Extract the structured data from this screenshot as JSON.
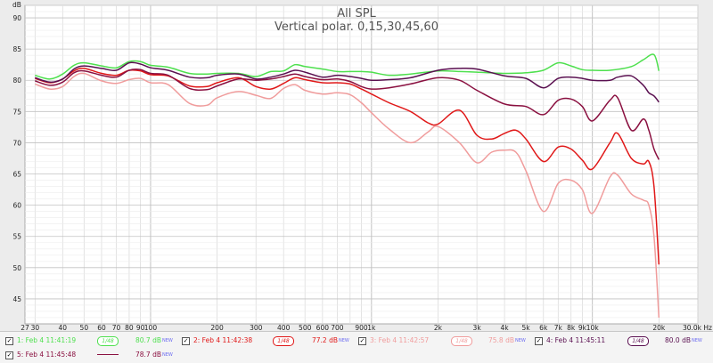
{
  "chart_data": {
    "type": "line",
    "title": "All SPL",
    "subtitle": "Vertical polar. 0,15,30,45,60",
    "ylabel": "dB",
    "xlabel": "Hz",
    "x_scale": "log",
    "xlim": [
      27,
      30000
    ],
    "ylim": [
      41,
      92
    ],
    "yticks": [
      45,
      50,
      55,
      60,
      65,
      70,
      75,
      80,
      85,
      90
    ],
    "xticks": [
      {
        "v": 27,
        "label": "27"
      },
      {
        "v": 30,
        "label": "30"
      },
      {
        "v": 40,
        "label": "40"
      },
      {
        "v": 50,
        "label": "50"
      },
      {
        "v": 60,
        "label": "60"
      },
      {
        "v": 70,
        "label": "70"
      },
      {
        "v": 80,
        "label": "80"
      },
      {
        "v": 90,
        "label": "90"
      },
      {
        "v": 100,
        "label": "100"
      },
      {
        "v": 200,
        "label": "200"
      },
      {
        "v": 300,
        "label": "300"
      },
      {
        "v": 400,
        "label": "400"
      },
      {
        "v": 500,
        "label": "500"
      },
      {
        "v": 600,
        "label": "600"
      },
      {
        "v": 700,
        "label": "700"
      },
      {
        "v": 900,
        "label": "900"
      },
      {
        "v": 1000,
        "label": "1k"
      },
      {
        "v": 2000,
        "label": "2k"
      },
      {
        "v": 3000,
        "label": "3k"
      },
      {
        "v": 4000,
        "label": "4k"
      },
      {
        "v": 5000,
        "label": "5k"
      },
      {
        "v": 6000,
        "label": "6k"
      },
      {
        "v": 7000,
        "label": "7k"
      },
      {
        "v": 8000,
        "label": "8k"
      },
      {
        "v": 9000,
        "label": "9k"
      },
      {
        "v": 10000,
        "label": "10k"
      },
      {
        "v": 20000,
        "label": "20k"
      },
      {
        "v": 30000,
        "label": "30.0k Hz"
      }
    ],
    "grid": true,
    "legend_position": "bottom",
    "series": [
      {
        "name": "1: Feb 4 11:41:19",
        "color": "#4ee04e",
        "level": "80.7 dB",
        "smoothing": "1/48",
        "points": [
          [
            30,
            80.8
          ],
          [
            35,
            80.2
          ],
          [
            40,
            81.0
          ],
          [
            45,
            82.4
          ],
          [
            50,
            82.8
          ],
          [
            60,
            82.3
          ],
          [
            70,
            82.0
          ],
          [
            80,
            83.0
          ],
          [
            90,
            83.0
          ],
          [
            100,
            82.4
          ],
          [
            120,
            82.1
          ],
          [
            150,
            81.1
          ],
          [
            180,
            81.0
          ],
          [
            200,
            81.1
          ],
          [
            250,
            81.1
          ],
          [
            300,
            80.6
          ],
          [
            350,
            81.4
          ],
          [
            400,
            81.5
          ],
          [
            450,
            82.5
          ],
          [
            500,
            82.2
          ],
          [
            600,
            81.8
          ],
          [
            700,
            81.4
          ],
          [
            800,
            81.4
          ],
          [
            900,
            81.4
          ],
          [
            1000,
            81.3
          ],
          [
            1200,
            80.8
          ],
          [
            1500,
            81.0
          ],
          [
            2000,
            81.5
          ],
          [
            2500,
            81.4
          ],
          [
            3000,
            81.3
          ],
          [
            4000,
            81.1
          ],
          [
            5000,
            81.2
          ],
          [
            6000,
            81.6
          ],
          [
            7000,
            82.8
          ],
          [
            8000,
            82.3
          ],
          [
            9000,
            81.7
          ],
          [
            10000,
            81.6
          ],
          [
            12000,
            81.6
          ],
          [
            15000,
            82.2
          ],
          [
            17000,
            83.3
          ],
          [
            19000,
            84.1
          ],
          [
            20000,
            81.5
          ]
        ]
      },
      {
        "name": "2: Feb 4 11:42:38",
        "color": "#e01818",
        "level": "77.2 dB",
        "smoothing": "1/48",
        "points": [
          [
            30,
            80.3
          ],
          [
            35,
            79.6
          ],
          [
            40,
            80.2
          ],
          [
            45,
            81.5
          ],
          [
            50,
            81.9
          ],
          [
            60,
            81.1
          ],
          [
            70,
            80.8
          ],
          [
            80,
            81.6
          ],
          [
            90,
            81.5
          ],
          [
            100,
            80.9
          ],
          [
            120,
            80.7
          ],
          [
            150,
            79.1
          ],
          [
            180,
            79.0
          ],
          [
            200,
            79.6
          ],
          [
            250,
            80.4
          ],
          [
            300,
            79.0
          ],
          [
            350,
            78.6
          ],
          [
            400,
            79.5
          ],
          [
            450,
            80.4
          ],
          [
            500,
            80.1
          ],
          [
            600,
            79.6
          ],
          [
            700,
            79.6
          ],
          [
            800,
            79.4
          ],
          [
            900,
            78.6
          ],
          [
            1000,
            77.8
          ],
          [
            1200,
            76.4
          ],
          [
            1500,
            75.0
          ],
          [
            1800,
            73.2
          ],
          [
            2000,
            73.0
          ],
          [
            2500,
            75.2
          ],
          [
            3000,
            71.2
          ],
          [
            3500,
            70.6
          ],
          [
            4000,
            71.5
          ],
          [
            4500,
            72.0
          ],
          [
            5000,
            70.6
          ],
          [
            6000,
            67.0
          ],
          [
            7000,
            69.3
          ],
          [
            8000,
            69.0
          ],
          [
            9000,
            67.2
          ],
          [
            10000,
            65.8
          ],
          [
            12000,
            70.0
          ],
          [
            13000,
            71.5
          ],
          [
            15000,
            67.5
          ],
          [
            17000,
            66.6
          ],
          [
            18000,
            67.0
          ],
          [
            19000,
            63.0
          ],
          [
            20000,
            50.5
          ]
        ]
      },
      {
        "name": "3: Feb 4 11:42:57",
        "color": "#f09c9c",
        "level": "75.8 dB",
        "smoothing": "1/48",
        "points": [
          [
            30,
            79.4
          ],
          [
            35,
            78.6
          ],
          [
            40,
            79.0
          ],
          [
            45,
            80.6
          ],
          [
            50,
            81.1
          ],
          [
            60,
            79.9
          ],
          [
            70,
            79.5
          ],
          [
            80,
            80.1
          ],
          [
            90,
            80.3
          ],
          [
            100,
            79.6
          ],
          [
            120,
            79.3
          ],
          [
            150,
            76.3
          ],
          [
            180,
            76.0
          ],
          [
            200,
            77.2
          ],
          [
            250,
            78.2
          ],
          [
            300,
            77.6
          ],
          [
            350,
            77.1
          ],
          [
            400,
            78.7
          ],
          [
            450,
            79.3
          ],
          [
            500,
            78.4
          ],
          [
            600,
            77.8
          ],
          [
            700,
            78.0
          ],
          [
            800,
            77.7
          ],
          [
            900,
            76.4
          ],
          [
            1000,
            74.8
          ],
          [
            1200,
            72.2
          ],
          [
            1500,
            70.0
          ],
          [
            1800,
            71.7
          ],
          [
            2000,
            72.6
          ],
          [
            2500,
            70.0
          ],
          [
            3000,
            66.8
          ],
          [
            3500,
            68.5
          ],
          [
            4000,
            68.8
          ],
          [
            4500,
            68.5
          ],
          [
            5000,
            65.5
          ],
          [
            6000,
            59.0
          ],
          [
            7000,
            63.5
          ],
          [
            8000,
            64.0
          ],
          [
            9000,
            62.5
          ],
          [
            10000,
            58.7
          ],
          [
            12000,
            64.5
          ],
          [
            13000,
            64.8
          ],
          [
            15000,
            61.8
          ],
          [
            17000,
            60.8
          ],
          [
            18000,
            60.0
          ],
          [
            19000,
            55.0
          ],
          [
            20000,
            42.0
          ]
        ]
      },
      {
        "name": "4: Feb 4 11:45:11",
        "color": "#5a1050",
        "level": "80.0 dB",
        "smoothing": "1/48",
        "points": [
          [
            30,
            80.4
          ],
          [
            35,
            79.7
          ],
          [
            40,
            80.2
          ],
          [
            45,
            81.8
          ],
          [
            50,
            82.3
          ],
          [
            60,
            81.9
          ],
          [
            70,
            81.6
          ],
          [
            80,
            82.8
          ],
          [
            90,
            82.6
          ],
          [
            100,
            82.0
          ],
          [
            120,
            81.6
          ],
          [
            150,
            80.5
          ],
          [
            180,
            80.4
          ],
          [
            200,
            80.8
          ],
          [
            250,
            81.0
          ],
          [
            300,
            80.2
          ],
          [
            350,
            80.5
          ],
          [
            400,
            81.0
          ],
          [
            450,
            81.6
          ],
          [
            500,
            81.3
          ],
          [
            600,
            80.5
          ],
          [
            700,
            80.8
          ],
          [
            800,
            80.6
          ],
          [
            900,
            80.3
          ],
          [
            1000,
            80.0
          ],
          [
            1200,
            80.1
          ],
          [
            1500,
            80.4
          ],
          [
            2000,
            81.6
          ],
          [
            2500,
            81.9
          ],
          [
            3000,
            81.8
          ],
          [
            4000,
            80.7
          ],
          [
            5000,
            80.3
          ],
          [
            6000,
            78.8
          ],
          [
            7000,
            80.3
          ],
          [
            8000,
            80.5
          ],
          [
            9000,
            80.3
          ],
          [
            10000,
            80.0
          ],
          [
            12000,
            80.0
          ],
          [
            13000,
            80.5
          ],
          [
            15000,
            80.7
          ],
          [
            17000,
            79.2
          ],
          [
            18000,
            78.0
          ],
          [
            19000,
            77.5
          ],
          [
            20000,
            76.5
          ]
        ]
      },
      {
        "name": "5: Feb 4 11:45:48",
        "color": "#8a1040",
        "level": "78.7 dB",
        "smoothing": "",
        "points": [
          [
            30,
            79.9
          ],
          [
            35,
            79.2
          ],
          [
            40,
            79.7
          ],
          [
            45,
            81.2
          ],
          [
            50,
            81.5
          ],
          [
            60,
            80.8
          ],
          [
            70,
            80.5
          ],
          [
            80,
            81.6
          ],
          [
            90,
            81.7
          ],
          [
            100,
            81.1
          ],
          [
            120,
            80.8
          ],
          [
            150,
            78.7
          ],
          [
            180,
            78.5
          ],
          [
            200,
            79.1
          ],
          [
            250,
            80.2
          ],
          [
            300,
            80.0
          ],
          [
            350,
            80.2
          ],
          [
            400,
            80.6
          ],
          [
            450,
            81.0
          ],
          [
            500,
            80.6
          ],
          [
            600,
            80.1
          ],
          [
            700,
            80.2
          ],
          [
            800,
            79.8
          ],
          [
            900,
            79.0
          ],
          [
            1000,
            78.6
          ],
          [
            1200,
            78.8
          ],
          [
            1500,
            79.4
          ],
          [
            2000,
            80.4
          ],
          [
            2500,
            80.0
          ],
          [
            3000,
            78.4
          ],
          [
            4000,
            76.2
          ],
          [
            5000,
            75.8
          ],
          [
            6000,
            74.5
          ],
          [
            7000,
            76.8
          ],
          [
            8000,
            77.0
          ],
          [
            9000,
            75.8
          ],
          [
            10000,
            73.5
          ],
          [
            12000,
            76.8
          ],
          [
            13000,
            77.2
          ],
          [
            15000,
            72.0
          ],
          [
            17000,
            73.8
          ],
          [
            18000,
            72.0
          ],
          [
            19000,
            69.0
          ],
          [
            20000,
            67.3
          ]
        ]
      }
    ]
  },
  "legend": {
    "items": [
      {
        "label": "1: Feb 4 11:41:19",
        "badge": "1/48",
        "level": "80.7 dB",
        "new": "NEW",
        "color": "#4ee04e",
        "checked": "✓"
      },
      {
        "label": "2: Feb 4 11:42:38",
        "badge": "1/48",
        "level": "77.2 dB",
        "new": "NEW",
        "color": "#e01818",
        "checked": "✓"
      },
      {
        "label": "3: Feb 4 11:42:57",
        "badge": "1/48",
        "level": "75.8 dB",
        "new": "NEW",
        "color": "#f09c9c",
        "checked": "✓"
      },
      {
        "label": "4: Feb 4 11:45:11",
        "badge": "1/48",
        "level": "80.0 dB",
        "new": "NEW",
        "color": "#5a1050",
        "checked": "✓"
      },
      {
        "label": "5: Feb 4 11:45:48",
        "badge": "",
        "level": "78.7 dB",
        "new": "NEW",
        "color": "#8a1040",
        "checked": "✓"
      }
    ]
  }
}
